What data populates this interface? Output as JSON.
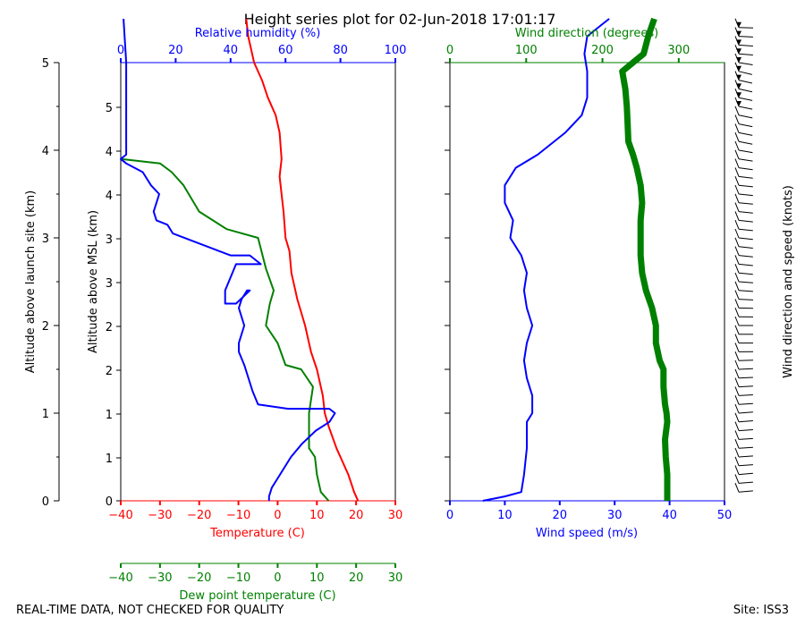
{
  "title": "Height series plot for 02-Jun-2018 17:01:17",
  "footer_left": "REAL-TIME DATA, NOT CHECKED FOR QUALITY",
  "footer_right": "Site: ISS3",
  "colors": {
    "temperature": "#ff0000",
    "dewpoint": "#008000",
    "rh": "#0000ff",
    "wind_speed": "#0000ff",
    "wind_dir": "#008000",
    "axis": "#000000"
  },
  "chart_data": [
    {
      "type": "line",
      "title": "Thermodynamic profile",
      "left_axis": {
        "label": "Altitude above launch site (km)",
        "ylim": [
          0,
          5
        ],
        "ticks": [
          "0",
          "1",
          "2",
          "3",
          "4",
          "5"
        ]
      },
      "inner_axis": {
        "label": "Altitude above MSL (km)",
        "ticks": [
          "0",
          "1",
          "2",
          "3",
          "4",
          "5"
        ]
      },
      "x_bottom": {
        "label": "Temperature (C)",
        "xlim": [
          -40,
          30
        ],
        "ticks": [
          "−40",
          "−30",
          "−20",
          "−10",
          "0",
          "10",
          "20",
          "30"
        ]
      },
      "x_dew": {
        "label": "Dew point temperature (C)",
        "xlim": [
          -40,
          30
        ],
        "ticks": [
          "−40",
          "−30",
          "−20",
          "−10",
          "0",
          "10",
          "20",
          "30"
        ]
      },
      "x_top": {
        "label": "Relative humidity (%)",
        "xlim": [
          0,
          100
        ],
        "ticks": [
          "0",
          "20",
          "40",
          "60",
          "80",
          "100"
        ]
      },
      "series": [
        {
          "name": "Temperature",
          "axis": "x_bottom",
          "points": [
            [
              20.5,
              0.0
            ],
            [
              19.5,
              0.1
            ],
            [
              18,
              0.3
            ],
            [
              15,
              0.6
            ],
            [
              13,
              0.85
            ],
            [
              12,
              1.0
            ],
            [
              11.5,
              1.2
            ],
            [
              10,
              1.5
            ],
            [
              8.5,
              1.7
            ],
            [
              7,
              2.0
            ],
            [
              5,
              2.3
            ],
            [
              3.5,
              2.6
            ],
            [
              3,
              2.85
            ],
            [
              2,
              3.0
            ],
            [
              1.5,
              3.3
            ],
            [
              1,
              3.5
            ],
            [
              0.5,
              3.7
            ],
            [
              1,
              3.9
            ],
            [
              0.5,
              4.2
            ],
            [
              -0.5,
              4.4
            ],
            [
              -2.5,
              4.6
            ],
            [
              -4,
              4.8
            ],
            [
              -6,
              5.0
            ],
            [
              -7.5,
              5.3
            ],
            [
              -8,
              5.5
            ]
          ]
        },
        {
          "name": "Dew point",
          "axis": "x_dew",
          "points": [
            [
              13,
              0.0
            ],
            [
              11,
              0.1
            ],
            [
              10,
              0.3
            ],
            [
              9.5,
              0.5
            ],
            [
              8,
              0.6
            ],
            [
              8,
              0.85
            ],
            [
              8,
              1.0
            ],
            [
              9,
              1.3
            ],
            [
              6,
              1.5
            ],
            [
              2,
              1.55
            ],
            [
              0,
              1.8
            ],
            [
              -3,
              2.0
            ],
            [
              -2,
              2.25
            ],
            [
              -1,
              2.4
            ],
            [
              -3,
              2.65
            ],
            [
              -5,
              3.0
            ],
            [
              -13,
              3.1
            ],
            [
              -20,
              3.3
            ],
            [
              -22,
              3.45
            ],
            [
              -24,
              3.6
            ],
            [
              -27,
              3.75
            ],
            [
              -30,
              3.85
            ],
            [
              -40,
              3.9
            ]
          ]
        },
        {
          "name": "Relative humidity",
          "axis": "x_top",
          "points": [
            [
              54,
              0.0
            ],
            [
              54,
              0.05
            ],
            [
              55,
              0.15
            ],
            [
              58,
              0.3
            ],
            [
              62,
              0.5
            ],
            [
              66,
              0.65
            ],
            [
              71,
              0.8
            ],
            [
              76,
              0.9
            ],
            [
              78,
              1.0
            ],
            [
              76,
              1.05
            ],
            [
              61,
              1.05
            ],
            [
              50,
              1.1
            ],
            [
              48,
              1.25
            ],
            [
              45,
              1.55
            ],
            [
              43,
              1.7
            ],
            [
              43,
              1.8
            ],
            [
              45,
              2.0
            ],
            [
              43,
              2.2
            ],
            [
              44,
              2.3
            ],
            [
              46,
              2.4
            ],
            [
              47,
              2.4
            ],
            [
              42,
              2.25
            ],
            [
              38,
              2.25
            ],
            [
              38,
              2.4
            ],
            [
              42,
              2.7
            ],
            [
              51,
              2.7
            ],
            [
              47,
              2.8
            ],
            [
              40,
              2.8
            ],
            [
              19,
              3.05
            ],
            [
              17,
              3.15
            ],
            [
              13,
              3.2
            ],
            [
              12,
              3.3
            ],
            [
              13,
              3.4
            ],
            [
              14,
              3.5
            ],
            [
              11,
              3.6
            ],
            [
              8,
              3.75
            ],
            [
              2,
              3.85
            ],
            [
              0,
              3.9
            ],
            [
              2,
              3.95
            ],
            [
              2,
              4.5
            ],
            [
              2,
              5.0
            ],
            [
              1,
              5.5
            ]
          ]
        }
      ]
    },
    {
      "type": "line",
      "title": "Wind profile",
      "x_bottom": {
        "label": "Wind speed (m/s)",
        "xlim": [
          0,
          50
        ],
        "ticks": [
          "0",
          "10",
          "20",
          "30",
          "40",
          "50"
        ]
      },
      "x_top": {
        "label": "Wind direction (degrees)",
        "xlim": [
          0,
          360
        ],
        "ticks": [
          "0",
          "100",
          "200",
          "300"
        ]
      },
      "right_label": "Wind direction and speed (knots)",
      "series": [
        {
          "name": "Wind speed",
          "axis": "x_bottom",
          "points": [
            [
              6,
              0.0
            ],
            [
              10,
              0.05
            ],
            [
              13,
              0.1
            ],
            [
              13.5,
              0.3
            ],
            [
              14,
              0.6
            ],
            [
              14,
              0.9
            ],
            [
              15,
              1.0
            ],
            [
              15,
              1.2
            ],
            [
              14,
              1.4
            ],
            [
              13.5,
              1.6
            ],
            [
              14,
              1.8
            ],
            [
              15,
              2.0
            ],
            [
              14,
              2.2
            ],
            [
              13.5,
              2.4
            ],
            [
              14,
              2.6
            ],
            [
              13,
              2.8
            ],
            [
              11,
              3.0
            ],
            [
              11.5,
              3.2
            ],
            [
              10,
              3.4
            ],
            [
              10,
              3.6
            ],
            [
              12,
              3.8
            ],
            [
              16,
              3.95
            ],
            [
              21,
              4.2
            ],
            [
              24,
              4.4
            ],
            [
              25,
              4.6
            ],
            [
              25,
              4.9
            ],
            [
              24.5,
              5.1
            ],
            [
              25,
              5.3
            ],
            [
              28,
              5.45
            ],
            [
              29,
              5.5
            ]
          ]
        },
        {
          "name": "Wind direction",
          "axis": "x_top",
          "points": [
            [
              285,
              0.0
            ],
            [
              285,
              0.3
            ],
            [
              283,
              0.5
            ],
            [
              282,
              0.7
            ],
            [
              285,
              0.9
            ],
            [
              284,
              1.0
            ],
            [
              282,
              1.1
            ],
            [
              280,
              1.3
            ],
            [
              280,
              1.5
            ],
            [
              275,
              1.6
            ],
            [
              270,
              1.8
            ],
            [
              270,
              2.0
            ],
            [
              265,
              2.2
            ],
            [
              257,
              2.4
            ],
            [
              252,
              2.6
            ],
            [
              250,
              2.8
            ],
            [
              250,
              3.0
            ],
            [
              250,
              3.2
            ],
            [
              252,
              3.4
            ],
            [
              250,
              3.6
            ],
            [
              245,
              3.8
            ],
            [
              240,
              3.95
            ],
            [
              234,
              4.1
            ],
            [
              233,
              4.3
            ],
            [
              232,
              4.5
            ],
            [
              230,
              4.7
            ],
            [
              226,
              4.9
            ],
            [
              254,
              5.1
            ],
            [
              260,
              5.3
            ],
            [
              268,
              5.5
            ]
          ]
        }
      ]
    }
  ]
}
